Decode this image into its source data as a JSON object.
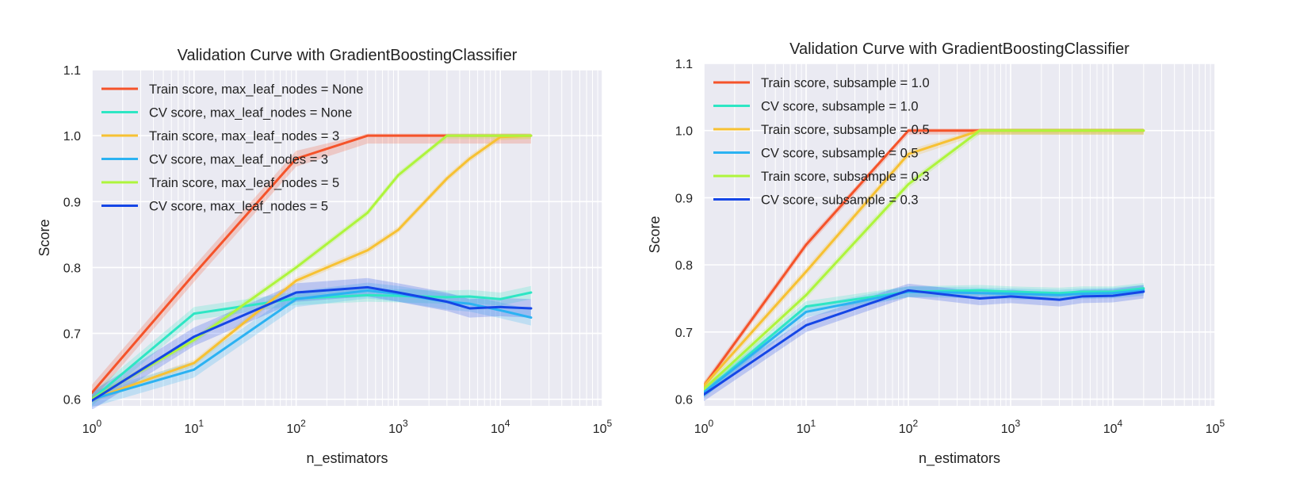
{
  "chart_data": [
    {
      "type": "line",
      "title": "Validation Curve with GradientBoostingClassifier",
      "xlabel": "n_estimators",
      "ylabel": "Score",
      "xscale": "log",
      "xlim": [
        1,
        100000
      ],
      "ylim": [
        0.59,
        1.1
      ],
      "x_ticks": [
        1,
        10,
        100,
        1000,
        10000,
        100000
      ],
      "y_ticks": [
        0.6,
        0.7,
        0.8,
        0.9,
        1.0,
        1.1
      ],
      "y_tick_labels": [
        "0.6",
        "0.7",
        "0.8",
        "0.9",
        "1.0",
        "1.1"
      ],
      "grid": true,
      "legend_position": "upper-left",
      "x": [
        1,
        10,
        100,
        500,
        1000,
        3000,
        5000,
        10000,
        20000
      ],
      "series": [
        {
          "name": "Train score, max_leaf_nodes = None",
          "color": "#f5532a",
          "values": [
            0.61,
            0.79,
            0.965,
            1.0,
            1.0,
            1.0,
            1.0,
            1.0,
            1.0
          ],
          "band": 0.012
        },
        {
          "name": "CV score, max_leaf_nodes = None",
          "color": "#2ee6c4",
          "values": [
            0.6,
            0.73,
            0.753,
            0.758,
            0.757,
            0.755,
            0.756,
            0.752,
            0.762
          ],
          "band": 0.01
        },
        {
          "name": "Train score, max_leaf_nodes = 3",
          "color": "#f7c133",
          "values": [
            0.6,
            0.655,
            0.78,
            0.826,
            0.857,
            0.935,
            0.965,
            0.998,
            1.0
          ],
          "band": 0.005
        },
        {
          "name": "CV score, max_leaf_nodes = 3",
          "color": "#2bb2f2",
          "values": [
            0.6,
            0.645,
            0.752,
            0.765,
            0.76,
            0.748,
            0.745,
            0.735,
            0.724
          ],
          "band": 0.012
        },
        {
          "name": "Train score, max_leaf_nodes = 5",
          "color": "#aef53c",
          "values": [
            0.6,
            0.69,
            0.8,
            0.883,
            0.94,
            1.0,
            1.0,
            1.0,
            1.0
          ],
          "band": 0.005
        },
        {
          "name": "CV score, max_leaf_nodes = 5",
          "color": "#1546e6",
          "values": [
            0.598,
            0.695,
            0.762,
            0.77,
            0.762,
            0.748,
            0.738,
            0.74,
            0.738
          ],
          "band": 0.014
        }
      ]
    },
    {
      "type": "line",
      "title": "Validation Curve with GradientBoostingClassifier",
      "xlabel": "n_estimators",
      "ylabel": "Score",
      "xscale": "log",
      "xlim": [
        1,
        100000
      ],
      "ylim": [
        0.59,
        1.1
      ],
      "x_ticks": [
        1,
        10,
        100,
        1000,
        10000,
        100000
      ],
      "y_ticks": [
        0.6,
        0.7,
        0.8,
        0.9,
        1.0,
        1.1
      ],
      "y_tick_labels": [
        "0.6",
        "0.7",
        "0.8",
        "0.9",
        "1.0",
        "1.1"
      ],
      "grid": true,
      "legend_position": "upper-left",
      "x": [
        1,
        10,
        100,
        500,
        1000,
        3000,
        5000,
        10000,
        20000
      ],
      "series": [
        {
          "name": "Train score, subsample = 1.0",
          "color": "#f5532a",
          "values": [
            0.62,
            0.83,
            1.0,
            1.0,
            1.0,
            1.0,
            1.0,
            1.0,
            1.0
          ],
          "band": 0.006
        },
        {
          "name": "CV score, subsample = 1.0",
          "color": "#2ee6c4",
          "values": [
            0.61,
            0.738,
            0.76,
            0.762,
            0.76,
            0.758,
            0.76,
            0.76,
            0.765
          ],
          "band": 0.008
        },
        {
          "name": "Train score, subsample = 0.5",
          "color": "#f7c133",
          "values": [
            0.62,
            0.79,
            0.965,
            1.0,
            1.0,
            1.0,
            1.0,
            1.0,
            1.0
          ],
          "band": 0.006
        },
        {
          "name": "CV score, subsample = 0.5",
          "color": "#2bb2f2",
          "values": [
            0.61,
            0.73,
            0.76,
            0.758,
            0.757,
            0.755,
            0.757,
            0.758,
            0.762
          ],
          "band": 0.008
        },
        {
          "name": "Train score, subsample = 0.3",
          "color": "#aef53c",
          "values": [
            0.615,
            0.755,
            0.92,
            1.0,
            1.0,
            1.0,
            1.0,
            1.0,
            1.0
          ],
          "band": 0.006
        },
        {
          "name": "CV score, subsample = 0.3",
          "color": "#1546e6",
          "values": [
            0.607,
            0.71,
            0.762,
            0.75,
            0.753,
            0.748,
            0.753,
            0.754,
            0.76
          ],
          "band": 0.01
        }
      ]
    }
  ]
}
